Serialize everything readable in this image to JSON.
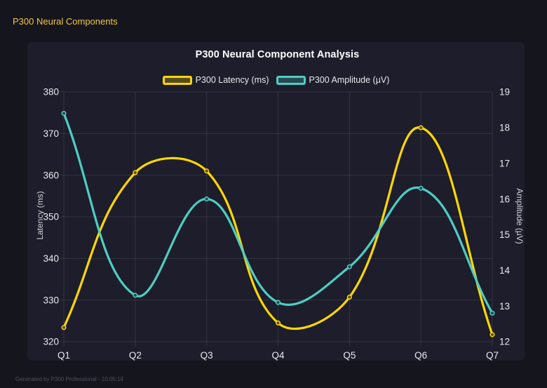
{
  "header": {
    "title": "P300 Neural Components"
  },
  "footer": {
    "text": "Generated by P300 Professional - 10:05:14"
  },
  "colors": {
    "background": "#15151e",
    "panel": "#1d1d2b",
    "grid": "rgba(255,255,255,0.10)",
    "tick_text": "#e9e9ee",
    "axis_title_text": "#d2d2da",
    "title_text": "#ffffff",
    "header_text": "#f2c73e",
    "footer_text": "#50505a"
  },
  "chart_data": {
    "type": "line",
    "title": "P300 Neural Component Analysis",
    "categories": [
      "Q1",
      "Q2",
      "Q3",
      "Q4",
      "Q5",
      "Q6",
      "Q7"
    ],
    "series": [
      {
        "name": "P300 Latency (ms)",
        "axis": "left",
        "color": "#ffd700",
        "values": [
          323.4,
          360.6,
          361,
          324.5,
          330.7,
          371.4,
          321.7
        ]
      },
      {
        "name": "P300 Amplitude (µV)",
        "axis": "right",
        "color": "#4ecdc4",
        "values": [
          18.4,
          13.3,
          16,
          13.1,
          14.1,
          16.3,
          12.8
        ]
      }
    ],
    "y_left": {
      "label": "Latency (ms)",
      "min": 320,
      "max": 380,
      "step": 10
    },
    "y_right": {
      "label": "Amplitude (µV)",
      "min": 12,
      "max": 19,
      "step": 1
    },
    "grid": true,
    "legend_position": "top",
    "line_style": {
      "tension": 0.4,
      "width": 3.2,
      "point_radius": 2.8
    }
  }
}
